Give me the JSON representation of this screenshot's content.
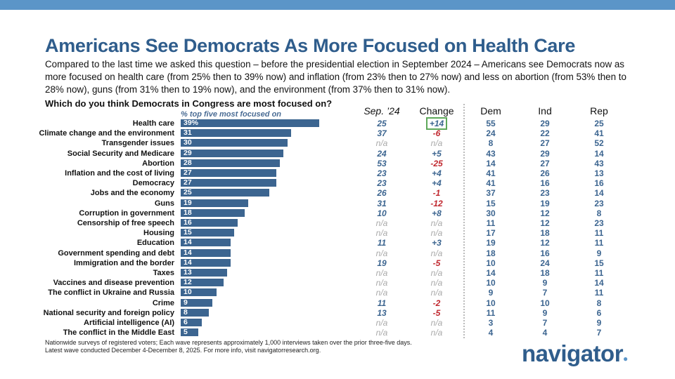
{
  "title": "Americans See Democrats As More Focused on Health Care",
  "subtitle": "Compared to the last time we asked this question – before the presidential election in September 2024 – Americans see Democrats now as more focused on health care (from 25% then to 39% now) and inflation (from 23% then to 27% now) and less on abortion (from 53% then to 28% now), guns (from 31% then to 19% now), and the environment (from 37% then to 31% now).",
  "question": "Which do you think Democrats in Congress are most focused on?",
  "colors": {
    "bar": "#3c6590",
    "positive": "#3c6590",
    "negative": "#c0282f",
    "na": "#aaaaaa",
    "highlight": "#5ea85a",
    "topbar": "#5b95c8"
  },
  "chart_data": {
    "type": "bar",
    "orientation": "horizontal",
    "bar_header": "% top five most focused on",
    "columns": [
      "Sep. ’24",
      "Change",
      "Dem",
      "Ind",
      "Rep"
    ],
    "highlighted_cell": "Health care / Change",
    "rows": [
      {
        "label": "Health care",
        "value": 39,
        "value_label": "39%",
        "sep24": "25",
        "change": "+14",
        "dem": "55",
        "ind": "29",
        "rep": "25"
      },
      {
        "label": "Climate change and the environment",
        "value": 31,
        "value_label": "31",
        "sep24": "37",
        "change": "-6",
        "dem": "24",
        "ind": "22",
        "rep": "41"
      },
      {
        "label": "Transgender issues",
        "value": 30,
        "value_label": "30",
        "sep24": "n/a",
        "change": "n/a",
        "dem": "8",
        "ind": "27",
        "rep": "52"
      },
      {
        "label": "Social Security and Medicare",
        "value": 29,
        "value_label": "29",
        "sep24": "24",
        "change": "+5",
        "dem": "43",
        "ind": "29",
        "rep": "14"
      },
      {
        "label": "Abortion",
        "value": 28,
        "value_label": "28",
        "sep24": "53",
        "change": "-25",
        "dem": "14",
        "ind": "27",
        "rep": "43"
      },
      {
        "label": "Inflation and the cost of living",
        "value": 27,
        "value_label": "27",
        "sep24": "23",
        "change": "+4",
        "dem": "41",
        "ind": "26",
        "rep": "13"
      },
      {
        "label": "Democracy",
        "value": 27,
        "value_label": "27",
        "sep24": "23",
        "change": "+4",
        "dem": "41",
        "ind": "16",
        "rep": "16"
      },
      {
        "label": "Jobs and the economy",
        "value": 25,
        "value_label": "25",
        "sep24": "26",
        "change": "-1",
        "dem": "37",
        "ind": "23",
        "rep": "14"
      },
      {
        "label": "Guns",
        "value": 19,
        "value_label": "19",
        "sep24": "31",
        "change": "-12",
        "dem": "15",
        "ind": "19",
        "rep": "23"
      },
      {
        "label": "Corruption in government",
        "value": 18,
        "value_label": "18",
        "sep24": "10",
        "change": "+8",
        "dem": "30",
        "ind": "12",
        "rep": "8"
      },
      {
        "label": "Censorship of free speech",
        "value": 16,
        "value_label": "16",
        "sep24": "n/a",
        "change": "n/a",
        "dem": "11",
        "ind": "12",
        "rep": "23"
      },
      {
        "label": "Housing",
        "value": 15,
        "value_label": "15",
        "sep24": "n/a",
        "change": "n/a",
        "dem": "17",
        "ind": "18",
        "rep": "11"
      },
      {
        "label": "Education",
        "value": 14,
        "value_label": "14",
        "sep24": "11",
        "change": "+3",
        "dem": "19",
        "ind": "12",
        "rep": "11"
      },
      {
        "label": "Government spending and debt",
        "value": 14,
        "value_label": "14",
        "sep24": "n/a",
        "change": "n/a",
        "dem": "18",
        "ind": "16",
        "rep": "9"
      },
      {
        "label": "Immigration and the border",
        "value": 14,
        "value_label": "14",
        "sep24": "19",
        "change": "-5",
        "dem": "10",
        "ind": "24",
        "rep": "15"
      },
      {
        "label": "Taxes",
        "value": 13,
        "value_label": "13",
        "sep24": "n/a",
        "change": "n/a",
        "dem": "14",
        "ind": "18",
        "rep": "11"
      },
      {
        "label": "Vaccines and disease prevention",
        "value": 12,
        "value_label": "12",
        "sep24": "n/a",
        "change": "n/a",
        "dem": "10",
        "ind": "9",
        "rep": "14"
      },
      {
        "label": "The conflict in Ukraine and Russia",
        "value": 10,
        "value_label": "10",
        "sep24": "n/a",
        "change": "n/a",
        "dem": "9",
        "ind": "7",
        "rep": "11"
      },
      {
        "label": "Crime",
        "value": 9,
        "value_label": "9",
        "sep24": "11",
        "change": "-2",
        "dem": "10",
        "ind": "10",
        "rep": "8"
      },
      {
        "label": "National security and foreign policy",
        "value": 8,
        "value_label": "8",
        "sep24": "13",
        "change": "-5",
        "dem": "11",
        "ind": "9",
        "rep": "6"
      },
      {
        "label": "Artificial intelligence (AI)",
        "value": 6,
        "value_label": "6",
        "sep24": "n/a",
        "change": "n/a",
        "dem": "3",
        "ind": "7",
        "rep": "9"
      },
      {
        "label": "The conflict in the Middle East",
        "value": 5,
        "value_label": "5",
        "sep24": "n/a",
        "change": "n/a",
        "dem": "4",
        "ind": "4",
        "rep": "7"
      }
    ]
  },
  "footnote": {
    "line1": "Nationwide surveys of registered voters; Each wave represents approximately 1,000 interviews taken over the prior three-five days.",
    "line2": "Latest wave conducted December 4-December 8, 2025. For more info, visit navigatorresearch.org."
  },
  "logo": "navigator"
}
